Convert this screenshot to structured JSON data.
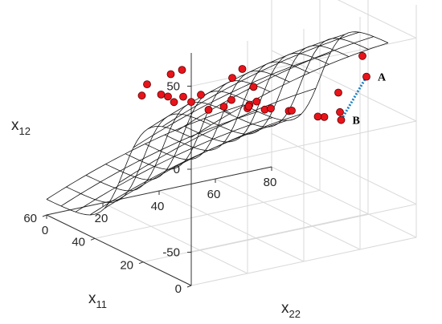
{
  "chart_data": {
    "type": "surface3d",
    "axes": {
      "x11": {
        "label_main": "x",
        "label_sub": "11",
        "range": [
          0,
          60
        ],
        "ticks": [
          0,
          20,
          40,
          60
        ]
      },
      "x22": {
        "label_main": "x",
        "label_sub": "22",
        "range": [
          0,
          80
        ],
        "ticks": [
          0,
          20,
          40,
          60,
          80
        ]
      },
      "x12": {
        "label_main": "x",
        "label_sub": "12",
        "range": [
          -70,
          70
        ],
        "ticks": [
          50,
          0,
          -50
        ]
      }
    },
    "grid": true,
    "surface": {
      "style": "black wireframe mesh on white",
      "x11_samples": [
        0,
        6,
        12,
        18,
        24,
        30,
        36,
        42,
        48,
        54,
        60
      ],
      "x22_samples": [
        0,
        7,
        14,
        21,
        28,
        35,
        42,
        49,
        56,
        63,
        70
      ]
    },
    "scatter": {
      "color": "#e8141b",
      "points": [
        {
          "x11": 6,
          "x22": 66,
          "x12": 40
        },
        {
          "x11": 9,
          "x22": 70,
          "x12": 24
        },
        {
          "x11": 9,
          "x22": 60,
          "x12": 18
        },
        {
          "x11": 13,
          "x22": 64,
          "x12": 2
        },
        {
          "x11": 16,
          "x22": 67,
          "x12": -6
        },
        {
          "x11": 16,
          "x22": 61,
          "x12": -2
        },
        {
          "x11": 21,
          "x22": 63,
          "x12": -6
        },
        {
          "x11": 26,
          "x22": 57,
          "x12": -4
        },
        {
          "x11": 19,
          "x22": 52,
          "x12": 3
        },
        {
          "x11": 22,
          "x22": 45,
          "x12": 4
        },
        {
          "x11": 16,
          "x22": 42,
          "x12": 10
        },
        {
          "x11": 16,
          "x22": 37,
          "x12": 16
        },
        {
          "x11": 19,
          "x22": 37,
          "x12": 12
        },
        {
          "x11": 21,
          "x22": 38,
          "x12": 8
        },
        {
          "x11": 25,
          "x22": 33,
          "x12": 8
        },
        {
          "x11": 24,
          "x22": 41,
          "x12": 6
        },
        {
          "x11": 29,
          "x22": 47,
          "x12": 12
        },
        {
          "x11": 30,
          "x22": 40,
          "x12": 6
        },
        {
          "x11": 31,
          "x22": 30,
          "x12": 12
        },
        {
          "x11": 29,
          "x22": 31,
          "x12": 4
        },
        {
          "x11": 28,
          "x22": 24,
          "x12": 12
        },
        {
          "x11": 36,
          "x22": 28,
          "x12": 8
        },
        {
          "x11": 34,
          "x22": 23,
          "x12": 8
        },
        {
          "x11": 40,
          "x22": 26,
          "x12": 6
        },
        {
          "x11": 44,
          "x22": 27,
          "x12": 4
        },
        {
          "x11": 44,
          "x22": 22,
          "x12": 12
        },
        {
          "x11": 38,
          "x22": 15,
          "x12": 12
        },
        {
          "x11": 47,
          "x22": 33,
          "x12": 12
        },
        {
          "x11": 39,
          "x22": 48,
          "x12": 10
        },
        {
          "x11": 43,
          "x22": 55,
          "x12": 10
        },
        {
          "x11": 54,
          "x22": 43,
          "x12": 6
        }
      ]
    },
    "annotations": [
      {
        "text": "A",
        "x11": 9,
        "x22": 70,
        "x12": 24
      },
      {
        "text": "B",
        "x11": 16,
        "x22": 67,
        "x12": -6
      }
    ],
    "connector": {
      "style": "dotted",
      "color": "#1a7fc4",
      "from": "A",
      "to": "B"
    }
  }
}
